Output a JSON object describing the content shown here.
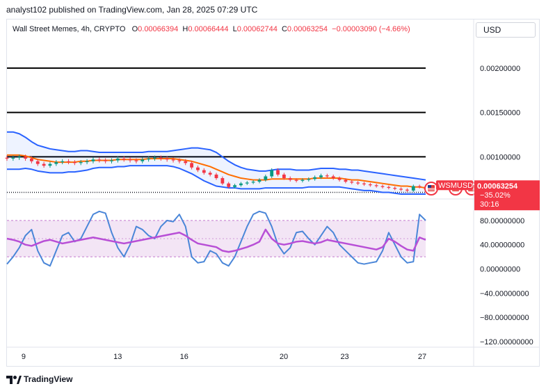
{
  "header": {
    "publisher_line": "analyst102 published on TradingView.com, Jan 28, 2025 07:29 UTC"
  },
  "symbol": {
    "name_line": "Wall Street Memes, 4h, CRYPTO",
    "o_label": "O",
    "o_value": "0.00066394",
    "h_label": "H",
    "h_value": "0.00066444",
    "l_label": "L",
    "l_value": "0.00062744",
    "c_label": "C",
    "c_value": "0.00063254",
    "change": "−0.00003090 (−4.66%)"
  },
  "currency_button": "USD",
  "price_badge": {
    "ticker": "WSMUSD",
    "price": "0.00063254",
    "change": "−35.02%",
    "countdown": "30:16"
  },
  "footer": {
    "brand": "TradingView"
  },
  "colors": {
    "candle_up": "#089981",
    "candle_down": "#f23645",
    "bollinger": "#2962ff",
    "basis": "#ff6d00",
    "stoch_k": "#4a86d8",
    "stoch_d": "#b84fd6",
    "stoch_band": "#f3e5f5",
    "badge": "#f23645"
  },
  "chart_data": [
    {
      "type": "line",
      "name": "price",
      "x_tick_labels": [
        "9",
        "13",
        "16",
        "20",
        "23",
        "27"
      ],
      "y_tick_labels": [
        "0.00200000",
        "0.00150000",
        "0.00100000"
      ],
      "ylim": [
        0.00058,
        0.00232
      ],
      "horizontal_lines": [
        0.002,
        0.0015,
        0.001,
        0.0006
      ],
      "close": [
        0.00098,
        0.00099,
        0.001,
        0.00098,
        0.00095,
        0.00092,
        0.0009,
        0.00092,
        0.00094,
        0.00095,
        0.00094,
        0.00093,
        0.00094,
        0.00095,
        0.00097,
        0.00096,
        0.00095,
        0.00096,
        0.00098,
        0.00097,
        0.00096,
        0.00095,
        0.00097,
        0.00098,
        0.00099,
        0.00098,
        0.00097,
        0.00096,
        0.00095,
        0.00093,
        0.00088,
        0.00085,
        0.00082,
        0.0008,
        0.00076,
        0.0007,
        0.00066,
        0.00068,
        0.0007,
        0.00071,
        0.00072,
        0.00074,
        0.00078,
        0.00085,
        0.0008,
        0.00076,
        0.00074,
        0.00073,
        0.00074,
        0.00075,
        0.00077,
        0.00079,
        0.00078,
        0.00076,
        0.00074,
        0.00072,
        0.00071,
        0.0007,
        0.00069,
        0.00068,
        0.00067,
        0.00066,
        0.00065,
        0.00064,
        0.00063,
        0.00062,
        0.00067,
        0.00066,
        0.000633
      ],
      "upper_band": [
        0.00128,
        0.00128,
        0.00126,
        0.00122,
        0.00117,
        0.00113,
        0.00111,
        0.00109,
        0.00108,
        0.00107,
        0.00106,
        0.00106,
        0.00107,
        0.00107,
        0.00106,
        0.00105,
        0.00105,
        0.00105,
        0.00105,
        0.00105,
        0.00105,
        0.00105,
        0.00105,
        0.00106,
        0.00106,
        0.00106,
        0.00106,
        0.00107,
        0.00108,
        0.00109,
        0.0011,
        0.0011,
        0.00109,
        0.00108,
        0.00105,
        0.001,
        0.00095,
        0.00091,
        0.00088,
        0.00086,
        0.00085,
        0.00084,
        0.00084,
        0.00085,
        0.00086,
        0.00086,
        0.00086,
        0.00085,
        0.00085,
        0.00085,
        0.00086,
        0.00087,
        0.00087,
        0.00087,
        0.00086,
        0.00086,
        0.00085,
        0.00085,
        0.00084,
        0.00083,
        0.00082,
        0.00081,
        0.0008,
        0.00079,
        0.00078,
        0.00077,
        0.00076,
        0.00075,
        0.00074
      ],
      "basis": [
        0.00102,
        0.00102,
        0.00102,
        0.00101,
        0.00099,
        0.00097,
        0.00096,
        0.00095,
        0.00094,
        0.00094,
        0.00094,
        0.00094,
        0.00095,
        0.00095,
        0.00096,
        0.00096,
        0.00096,
        0.00096,
        0.00097,
        0.00097,
        0.00097,
        0.00097,
        0.00097,
        0.00098,
        0.00098,
        0.00098,
        0.00098,
        0.00098,
        0.00097,
        0.00096,
        0.00095,
        0.00093,
        0.00091,
        0.00089,
        0.00086,
        0.00083,
        0.0008,
        0.00078,
        0.00076,
        0.00075,
        0.00074,
        0.00074,
        0.00074,
        0.00075,
        0.00075,
        0.00075,
        0.00075,
        0.00075,
        0.00075,
        0.00075,
        0.00076,
        0.00076,
        0.00076,
        0.00076,
        0.00076,
        0.00075,
        0.00074,
        0.00074,
        0.00073,
        0.00072,
        0.00071,
        0.0007,
        0.00069,
        0.00068,
        0.00067,
        0.00067,
        0.00066,
        0.00066,
        0.00065
      ],
      "lower_band": [
        0.00086,
        0.00086,
        0.00086,
        0.00087,
        0.00086,
        0.00084,
        0.00083,
        0.00082,
        0.00082,
        0.00082,
        0.00083,
        0.00083,
        0.00084,
        0.00085,
        0.00087,
        0.00088,
        0.00088,
        0.00088,
        0.00089,
        0.00089,
        0.0009,
        0.0009,
        0.0009,
        0.0009,
        0.0009,
        0.0009,
        0.0009,
        0.00089,
        0.00087,
        0.00084,
        0.00081,
        0.00077,
        0.00073,
        0.0007,
        0.00067,
        0.00066,
        0.00065,
        0.00065,
        0.00064,
        0.00064,
        0.00064,
        0.00064,
        0.00065,
        0.00065,
        0.00065,
        0.00065,
        0.00065,
        0.00065,
        0.00065,
        0.00066,
        0.00066,
        0.00066,
        0.00066,
        0.00066,
        0.00066,
        0.00065,
        0.00064,
        0.00063,
        0.00062,
        0.00062,
        0.00061,
        0.0006,
        0.0006,
        0.00059,
        0.00058,
        0.00058,
        0.00058,
        0.00058,
        0.00058
      ]
    },
    {
      "type": "line",
      "name": "stochastic",
      "y_tick_labels": [
        "80.00000000",
        "40.00000000",
        "0.00000000",
        "−40.00000000",
        "−80.00000000",
        "−120.00000000"
      ],
      "ylim": [
        -128,
        112
      ],
      "band": [
        20,
        80
      ],
      "midline": 50,
      "k": [
        8,
        20,
        35,
        55,
        65,
        30,
        10,
        5,
        30,
        55,
        60,
        45,
        50,
        70,
        90,
        95,
        92,
        60,
        35,
        20,
        40,
        70,
        65,
        55,
        50,
        70,
        80,
        78,
        90,
        70,
        20,
        10,
        12,
        30,
        25,
        10,
        5,
        20,
        45,
        70,
        90,
        95,
        92,
        70,
        40,
        25,
        35,
        60,
        62,
        50,
        40,
        55,
        70,
        60,
        40,
        30,
        20,
        10,
        8,
        10,
        12,
        30,
        60,
        40,
        20,
        10,
        12,
        90,
        80
      ],
      "d": [
        50,
        48,
        45,
        40,
        38,
        42,
        46,
        48,
        45,
        42,
        44,
        46,
        48,
        50,
        52,
        50,
        48,
        46,
        44,
        42,
        44,
        46,
        48,
        50,
        52,
        54,
        56,
        58,
        60,
        55,
        48,
        42,
        40,
        38,
        36,
        30,
        28,
        30,
        33,
        36,
        40,
        45,
        65,
        50,
        42,
        40,
        42,
        45,
        46,
        44,
        42,
        44,
        48,
        46,
        44,
        42,
        40,
        38,
        36,
        34,
        32,
        36,
        50,
        45,
        38,
        32,
        30,
        52,
        48
      ]
    }
  ]
}
